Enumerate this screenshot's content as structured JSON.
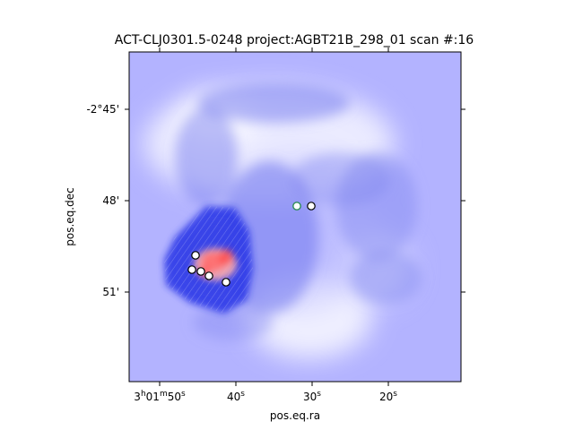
{
  "figure": {
    "title": "ACT-CLJ0301.5-0248 project:AGBT21B_298_01 scan #:16",
    "xlabel": "pos.eq.ra",
    "ylabel": "pos.eq.dec"
  },
  "axes": {
    "x_ticks": [
      {
        "label": "3h01m50s",
        "parts": [
          "3",
          "h",
          "01",
          "m",
          "50",
          "s"
        ]
      },
      {
        "label": "40s",
        "parts": [
          "40",
          "s"
        ]
      },
      {
        "label": "30s",
        "parts": [
          "30",
          "s"
        ]
      },
      {
        "label": "20s",
        "parts": [
          "20",
          "s"
        ]
      }
    ],
    "y_ticks": [
      "-2°45'",
      "48'",
      "51'"
    ]
  },
  "colors": {
    "background_blue": "#b3b3ff",
    "negative_blue": "#1f2be0",
    "positive_red": "#ff3b3b",
    "marker_edge": "#000000",
    "marker_fill": "#ffffff",
    "marker_green": "#2e8b57"
  },
  "sources": [
    {
      "style": "white-green"
    },
    {
      "style": "white"
    },
    {
      "style": "white"
    },
    {
      "style": "white"
    },
    {
      "style": "white"
    },
    {
      "style": "white"
    },
    {
      "style": "white"
    }
  ]
}
